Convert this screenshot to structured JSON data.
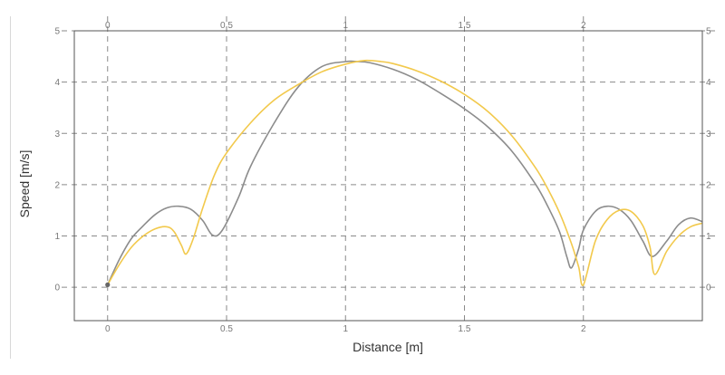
{
  "chart_data": {
    "type": "line",
    "title": "",
    "xlabel": "Distance [m]",
    "ylabel": "Speed [m/s]",
    "xlim": [
      -0.14,
      2.5
    ],
    "ylim": [
      -0.65,
      5
    ],
    "x_ticks": [
      0,
      0.5,
      1,
      1.5,
      2
    ],
    "x_tick_labels": [
      "0",
      "0.5",
      "1",
      "1.5",
      "2"
    ],
    "y_ticks": [
      0,
      1,
      2,
      3,
      4,
      5
    ],
    "y_tick_labels": [
      "0",
      "1",
      "2",
      "3",
      "4",
      "5"
    ],
    "grid": true,
    "legend": "none",
    "series": [
      {
        "color": "#8c8c8c",
        "x": [
          0,
          0.05,
          0.1,
          0.15,
          0.2,
          0.25,
          0.3,
          0.35,
          0.4,
          0.44,
          0.48,
          0.55,
          0.6,
          0.7,
          0.8,
          0.9,
          1.0,
          1.05,
          1.1,
          1.2,
          1.3,
          1.4,
          1.5,
          1.6,
          1.7,
          1.8,
          1.85,
          1.9,
          1.93,
          1.95,
          1.98,
          2.0,
          2.05,
          2.1,
          2.15,
          2.2,
          2.25,
          2.29,
          2.35,
          2.4,
          2.45,
          2.5
        ],
        "y": [
          0.05,
          0.55,
          0.95,
          1.2,
          1.42,
          1.55,
          1.58,
          1.52,
          1.3,
          1.02,
          1.1,
          1.75,
          2.35,
          3.2,
          3.9,
          4.3,
          4.4,
          4.4,
          4.38,
          4.25,
          4.05,
          3.78,
          3.48,
          3.12,
          2.65,
          2.0,
          1.58,
          1.08,
          0.6,
          0.38,
          0.75,
          1.12,
          1.48,
          1.58,
          1.52,
          1.3,
          0.9,
          0.6,
          0.9,
          1.22,
          1.35,
          1.28
        ]
      },
      {
        "color": "#f2c94c",
        "x": [
          0,
          0.05,
          0.1,
          0.15,
          0.2,
          0.25,
          0.28,
          0.31,
          0.33,
          0.36,
          0.4,
          0.45,
          0.5,
          0.6,
          0.7,
          0.8,
          0.9,
          1.0,
          1.08,
          1.15,
          1.2,
          1.3,
          1.4,
          1.5,
          1.6,
          1.7,
          1.8,
          1.85,
          1.9,
          1.95,
          1.98,
          2.0,
          2.05,
          2.1,
          2.15,
          2.2,
          2.25,
          2.28,
          2.3,
          2.35,
          2.4,
          2.45,
          2.5
        ],
        "y": [
          0.05,
          0.45,
          0.78,
          1.0,
          1.14,
          1.18,
          1.08,
          0.82,
          0.65,
          0.95,
          1.55,
          2.2,
          2.62,
          3.2,
          3.65,
          3.95,
          4.2,
          4.35,
          4.42,
          4.4,
          4.36,
          4.22,
          4.02,
          3.76,
          3.42,
          2.95,
          2.32,
          1.92,
          1.45,
          0.85,
          0.4,
          0.05,
          0.9,
          1.32,
          1.5,
          1.48,
          1.2,
          0.78,
          0.25,
          0.7,
          1.0,
          1.18,
          1.25
        ]
      }
    ],
    "markers": [
      {
        "x": 0,
        "y": 0.05,
        "color": "#666666"
      }
    ]
  }
}
